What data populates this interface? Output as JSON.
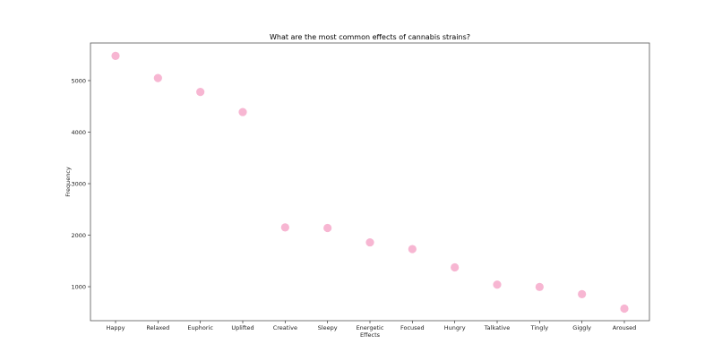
{
  "chart_data": {
    "type": "scatter",
    "title": "What are the most common effects of cannabis strains?",
    "xlabel": "Effects",
    "ylabel": "Frequency",
    "categories": [
      "Happy",
      "Relaxed",
      "Euphoric",
      "Uplifted",
      "Creative",
      "Sleepy",
      "Energetic",
      "Focused",
      "Hungry",
      "Talkative",
      "Tingly",
      "Giggly",
      "Aroused"
    ],
    "values": [
      5480,
      5050,
      4780,
      4390,
      2150,
      2140,
      1860,
      1730,
      1375,
      1040,
      995,
      855,
      575
    ],
    "yticks": [
      1000,
      2000,
      3000,
      4000,
      5000
    ],
    "ylim": [
      340,
      5730
    ],
    "grid": false,
    "legend": null,
    "marker_color": "#f7b6d2"
  }
}
